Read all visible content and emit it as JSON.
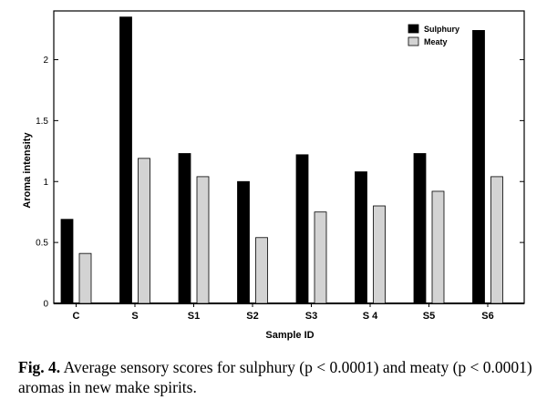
{
  "chart_data": {
    "type": "bar",
    "categories": [
      "C",
      "S",
      "S1",
      "S2",
      "S3",
      "S 4",
      "S5",
      "S6"
    ],
    "series": [
      {
        "name": "Sulphury",
        "color": "#000000",
        "values": [
          0.69,
          2.35,
          1.23,
          1.0,
          1.22,
          1.08,
          1.23,
          2.24
        ]
      },
      {
        "name": "Meaty",
        "color": "#d3d3d3",
        "values": [
          0.41,
          1.19,
          1.04,
          0.54,
          0.75,
          0.8,
          0.92,
          1.04
        ]
      }
    ],
    "xlabel": "Sample ID",
    "ylabel": "Aroma intensity",
    "ylim": [
      0,
      2.4
    ],
    "yticks": [
      0,
      0.5,
      1,
      1.5,
      2
    ],
    "ytick_labels": [
      "0",
      "0.5",
      "1",
      "1.5",
      "2"
    ],
    "legend_position": "top-right",
    "grid": false
  },
  "caption": {
    "label": "Fig. 4.",
    "text": "Average sensory scores for sulphury (p < 0.0001) and meaty (p < 0.0001) aromas in new make spirits."
  }
}
